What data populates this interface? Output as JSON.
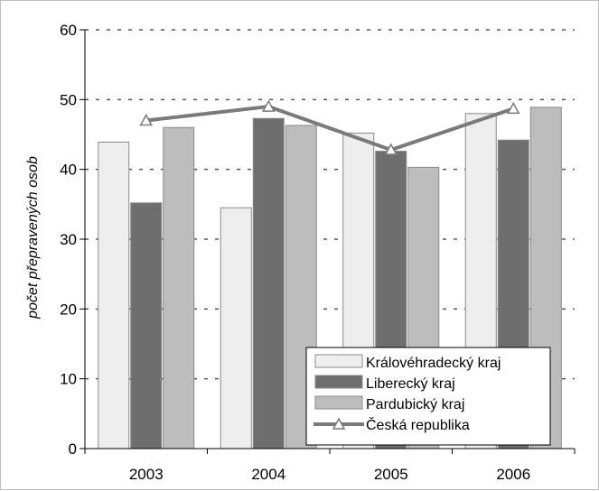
{
  "chart_data": {
    "type": "bar",
    "categories": [
      "2003",
      "2004",
      "2005",
      "2006"
    ],
    "series": [
      {
        "name": "Královéhradecký kraj",
        "type": "bar",
        "color": "#eeeeee",
        "values": [
          43.9,
          34.5,
          45.2,
          48.0
        ]
      },
      {
        "name": "Liberecký kraj",
        "type": "bar",
        "color": "#6e6e6e",
        "values": [
          35.2,
          47.3,
          42.6,
          44.2
        ]
      },
      {
        "name": "Pardubický kraj",
        "type": "bar",
        "color": "#bdbdbd",
        "values": [
          46.0,
          46.3,
          40.3,
          48.9
        ]
      },
      {
        "name": "Česká republika",
        "type": "line",
        "color": "#7a7a7a",
        "marker": "triangle",
        "values": [
          47.0,
          49.0,
          42.8,
          48.7
        ]
      }
    ],
    "title": "",
    "xlabel": "",
    "ylabel": "počet přepravených osob",
    "ylim": [
      0,
      60
    ],
    "yticks": [
      "0",
      "10",
      "20",
      "30",
      "40",
      "50",
      "60"
    ],
    "grid": "horizontal dashed",
    "legend_position": "bottom-right"
  }
}
